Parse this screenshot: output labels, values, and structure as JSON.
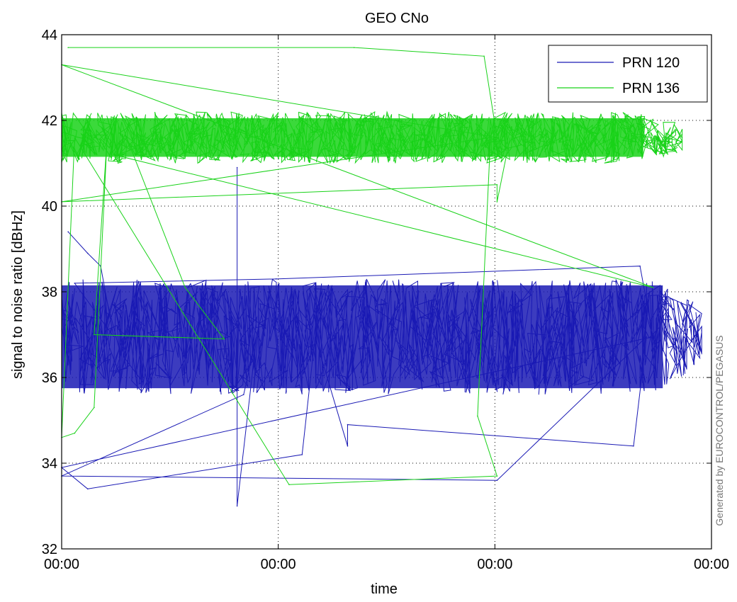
{
  "chart_data": {
    "type": "line",
    "title": "GEO CNo",
    "xlabel": "time",
    "ylabel": "signal to noise ratio [dBHz]",
    "ylim": [
      32,
      44
    ],
    "xlim": [
      0,
      1
    ],
    "yticks": [
      32,
      34,
      36,
      38,
      40,
      42,
      44
    ],
    "ytick_labels": [
      "32",
      "34",
      "36",
      "38",
      "40",
      "42",
      "44"
    ],
    "xticks": [
      0,
      0.3333,
      0.6667,
      1
    ],
    "xtick_labels": [
      "00:00",
      "00:00",
      "00:00",
      "00:00"
    ],
    "grid": true,
    "legend": {
      "position": "top-right",
      "entries": [
        "PRN 120",
        "PRN 136"
      ]
    },
    "watermark": "Generated by EUROCONTROL/PEGASUS",
    "series": [
      {
        "name": "PRN 120",
        "color": "#1a1ab4",
        "band": {
          "x_start": 0.0,
          "x_end": 0.985,
          "y_low": 35.6,
          "y_high": 38.3
        },
        "outliers": [
          {
            "x": 0.01,
            "y": 39.4
          },
          {
            "x": 0.04,
            "y": 38.9
          },
          {
            "x": 0.06,
            "y": 38.6
          },
          {
            "x": 0.02,
            "y": 38.2
          },
          {
            "x": 0.33,
            "y": 38.3
          },
          {
            "x": 0.89,
            "y": 38.6
          },
          {
            "x": 0.0,
            "y": 33.9
          },
          {
            "x": 0.04,
            "y": 33.4
          },
          {
            "x": 0.37,
            "y": 34.2
          },
          {
            "x": 0.44,
            "y": 34.4
          },
          {
            "x": 0.44,
            "y": 34.9
          },
          {
            "x": 0.88,
            "y": 34.4
          },
          {
            "x": 0.67,
            "y": 33.6
          },
          {
            "x": 0.0,
            "y": 33.7
          },
          {
            "x": 0.28,
            "y": 35.6
          },
          {
            "x": 0.27,
            "y": 33.0
          },
          {
            "x": 0.27,
            "y": 40.9
          }
        ]
      },
      {
        "name": "PRN 136",
        "color": "#19d219",
        "band": {
          "x_start": 0.0,
          "x_end": 0.955,
          "y_low": 41.0,
          "y_high": 42.2
        },
        "outliers": [
          {
            "x": 0.01,
            "y": 43.7
          },
          {
            "x": 0.45,
            "y": 43.7
          },
          {
            "x": 0.65,
            "y": 43.5
          },
          {
            "x": 0.0,
            "y": 43.3
          },
          {
            "x": 0.91,
            "y": 38.1
          },
          {
            "x": 0.08,
            "y": 41.2
          },
          {
            "x": 0.19,
            "y": 38.1
          },
          {
            "x": 0.25,
            "y": 36.9
          },
          {
            "x": 0.05,
            "y": 37.0
          },
          {
            "x": 0.05,
            "y": 35.3
          },
          {
            "x": 0.02,
            "y": 34.7
          },
          {
            "x": 0.0,
            "y": 34.6
          },
          {
            "x": 0.35,
            "y": 33.5
          },
          {
            "x": 0.67,
            "y": 33.7
          },
          {
            "x": 0.64,
            "y": 35.1
          },
          {
            "x": 0.0,
            "y": 40.1
          },
          {
            "x": 0.67,
            "y": 40.5
          },
          {
            "x": 0.67,
            "y": 40.1
          }
        ]
      }
    ]
  }
}
